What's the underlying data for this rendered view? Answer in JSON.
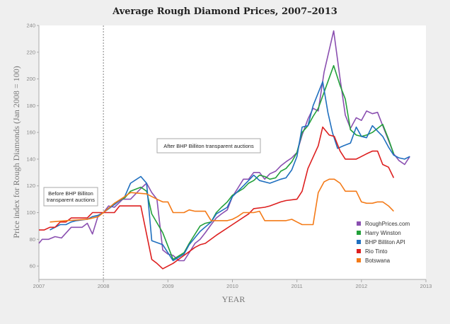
{
  "chart_data": {
    "type": "line",
    "title": "Average Rough Diamond Prices, 2007–2013",
    "xlabel": "YEAR",
    "ylabel": "Price index for Rough Diamonds (Jan 2008 = 100)",
    "xlim": [
      2007,
      2013
    ],
    "ylim": [
      50,
      240
    ],
    "x_ticks": [
      "2007",
      "2008",
      "2009",
      "2010",
      "2011",
      "2012",
      "2013"
    ],
    "y_ticks": [
      "60",
      "80",
      "100",
      "120",
      "140",
      "160",
      "180",
      "200",
      "220",
      "240"
    ],
    "grid": false,
    "legend_position": "bottom-right",
    "annotations": [
      {
        "text": "Before BHP Billiton transparent auctions",
        "lines": [
          "Before BHP Billiton",
          "transparent auctions"
        ]
      },
      {
        "text": "After BHP Billiton transparent auctions"
      }
    ],
    "marker_line_x": 2008,
    "series": [
      {
        "name": "RoughPrices.com",
        "color": "#8a4fb0",
        "points": [
          [
            2007.0,
            77
          ],
          [
            2007.05,
            80
          ],
          [
            2007.15,
            80
          ],
          [
            2007.25,
            82
          ],
          [
            2007.35,
            81
          ],
          [
            2007.5,
            89
          ],
          [
            2007.67,
            89
          ],
          [
            2007.75,
            92
          ],
          [
            2007.83,
            84
          ],
          [
            2007.92,
            98
          ],
          [
            2008.0,
            100
          ],
          [
            2008.08,
            105
          ],
          [
            2008.17,
            104
          ],
          [
            2008.3,
            110
          ],
          [
            2008.42,
            110
          ],
          [
            2008.58,
            118
          ],
          [
            2008.67,
            122
          ],
          [
            2008.75,
            115
          ],
          [
            2008.83,
            110
          ],
          [
            2008.92,
            72
          ],
          [
            2009.0,
            69
          ],
          [
            2009.08,
            68
          ],
          [
            2009.17,
            64
          ],
          [
            2009.25,
            64
          ],
          [
            2009.33,
            70
          ],
          [
            2009.42,
            77
          ],
          [
            2009.5,
            80
          ],
          [
            2009.58,
            85
          ],
          [
            2009.67,
            91
          ],
          [
            2009.75,
            96
          ],
          [
            2009.83,
            99
          ],
          [
            2009.92,
            102
          ],
          [
            2010.0,
            112
          ],
          [
            2010.08,
            118
          ],
          [
            2010.17,
            125
          ],
          [
            2010.25,
            125
          ],
          [
            2010.33,
            130
          ],
          [
            2010.42,
            130
          ],
          [
            2010.5,
            125
          ],
          [
            2010.58,
            129
          ],
          [
            2010.67,
            131
          ],
          [
            2010.75,
            135
          ],
          [
            2010.83,
            138
          ],
          [
            2010.92,
            141
          ],
          [
            2011.0,
            145
          ],
          [
            2011.08,
            158
          ],
          [
            2011.17,
            170
          ],
          [
            2011.25,
            178
          ],
          [
            2011.33,
            176
          ],
          [
            2011.42,
            205
          ],
          [
            2011.57,
            236
          ],
          [
            2011.67,
            200
          ],
          [
            2011.75,
            173
          ],
          [
            2011.83,
            163
          ],
          [
            2011.92,
            171
          ],
          [
            2012.0,
            169
          ],
          [
            2012.08,
            176
          ],
          [
            2012.17,
            174
          ],
          [
            2012.25,
            175
          ],
          [
            2012.33,
            165
          ],
          [
            2012.42,
            154
          ],
          [
            2012.5,
            144
          ],
          [
            2012.58,
            139
          ],
          [
            2012.67,
            136
          ],
          [
            2012.75,
            142
          ]
        ]
      },
      {
        "name": "Harry Winston",
        "color": "#22a03a",
        "points": [
          [
            2008.0,
            100
          ],
          [
            2008.17,
            107
          ],
          [
            2008.33,
            111
          ],
          [
            2008.42,
            116
          ],
          [
            2008.58,
            119
          ],
          [
            2008.67,
            116
          ],
          [
            2008.75,
            99
          ],
          [
            2008.92,
            85
          ],
          [
            2009.08,
            65
          ],
          [
            2009.25,
            70
          ],
          [
            2009.33,
            77
          ],
          [
            2009.5,
            90
          ],
          [
            2009.58,
            92
          ],
          [
            2009.67,
            93
          ],
          [
            2009.75,
            100
          ],
          [
            2009.83,
            104
          ],
          [
            2009.92,
            108
          ],
          [
            2010.0,
            113
          ],
          [
            2010.17,
            118
          ],
          [
            2010.25,
            122
          ],
          [
            2010.33,
            124
          ],
          [
            2010.42,
            128
          ],
          [
            2010.5,
            127
          ],
          [
            2010.58,
            125
          ],
          [
            2010.67,
            126
          ],
          [
            2010.75,
            131
          ],
          [
            2010.83,
            133
          ],
          [
            2010.92,
            138
          ],
          [
            2011.0,
            145
          ],
          [
            2011.08,
            160
          ],
          [
            2011.17,
            165
          ],
          [
            2011.25,
            172
          ],
          [
            2011.33,
            178
          ],
          [
            2011.42,
            190
          ],
          [
            2011.57,
            210
          ],
          [
            2011.67,
            195
          ],
          [
            2011.75,
            185
          ],
          [
            2011.83,
            162
          ],
          [
            2011.92,
            158
          ],
          [
            2012.0,
            157
          ],
          [
            2012.08,
            158
          ],
          [
            2012.17,
            160
          ],
          [
            2012.25,
            163
          ],
          [
            2012.33,
            166
          ],
          [
            2012.42,
            155
          ],
          [
            2012.5,
            144
          ]
        ]
      },
      {
        "name": "BHP Billiton API",
        "color": "#1f6fbf",
        "points": [
          [
            2007.17,
            87
          ],
          [
            2007.25,
            89
          ],
          [
            2007.33,
            91
          ],
          [
            2007.42,
            91
          ],
          [
            2007.5,
            93
          ],
          [
            2007.58,
            94
          ],
          [
            2007.75,
            95
          ],
          [
            2007.83,
            97
          ],
          [
            2007.92,
            98
          ],
          [
            2008.0,
            100
          ],
          [
            2008.17,
            106
          ],
          [
            2008.33,
            112
          ],
          [
            2008.42,
            122
          ],
          [
            2008.58,
            127
          ],
          [
            2008.67,
            122
          ],
          [
            2008.75,
            79
          ],
          [
            2008.92,
            76
          ],
          [
            2009.08,
            64
          ],
          [
            2009.25,
            69
          ],
          [
            2009.33,
            76
          ],
          [
            2009.5,
            86
          ],
          [
            2009.67,
            93
          ],
          [
            2009.75,
            99
          ],
          [
            2009.92,
            104
          ],
          [
            2010.0,
            112
          ],
          [
            2010.17,
            120
          ],
          [
            2010.25,
            124
          ],
          [
            2010.33,
            128
          ],
          [
            2010.42,
            124
          ],
          [
            2010.58,
            122
          ],
          [
            2010.75,
            125
          ],
          [
            2010.83,
            126
          ],
          [
            2010.92,
            132
          ],
          [
            2011.0,
            142
          ],
          [
            2011.08,
            164
          ],
          [
            2011.17,
            165
          ],
          [
            2011.25,
            180
          ],
          [
            2011.4,
            198
          ],
          [
            2011.48,
            175
          ],
          [
            2011.55,
            160
          ],
          [
            2011.63,
            148
          ],
          [
            2011.72,
            150
          ],
          [
            2011.83,
            152
          ],
          [
            2011.92,
            164
          ],
          [
            2012.0,
            157
          ],
          [
            2012.08,
            156
          ],
          [
            2012.17,
            165
          ],
          [
            2012.25,
            161
          ],
          [
            2012.33,
            157
          ],
          [
            2012.42,
            149
          ],
          [
            2012.5,
            143
          ],
          [
            2012.58,
            141
          ],
          [
            2012.67,
            140
          ],
          [
            2012.75,
            142
          ]
        ]
      },
      {
        "name": "Rio Tinto",
        "color": "#dd1f1f",
        "points": [
          [
            2007.0,
            87
          ],
          [
            2007.08,
            87
          ],
          [
            2007.17,
            89
          ],
          [
            2007.25,
            89
          ],
          [
            2007.33,
            93
          ],
          [
            2007.42,
            93
          ],
          [
            2007.5,
            96
          ],
          [
            2007.75,
            96
          ],
          [
            2007.83,
            100
          ],
          [
            2007.92,
            100
          ],
          [
            2008.0,
            100
          ],
          [
            2008.17,
            100
          ],
          [
            2008.25,
            105
          ],
          [
            2008.58,
            105
          ],
          [
            2008.75,
            65
          ],
          [
            2008.83,
            62
          ],
          [
            2008.92,
            58
          ],
          [
            2009.08,
            62
          ],
          [
            2009.25,
            68
          ],
          [
            2009.42,
            74
          ],
          [
            2009.5,
            76
          ],
          [
            2009.58,
            77
          ],
          [
            2009.75,
            83
          ],
          [
            2010.0,
            91
          ],
          [
            2010.25,
            99
          ],
          [
            2010.33,
            103
          ],
          [
            2010.5,
            104
          ],
          [
            2010.58,
            105
          ],
          [
            2010.75,
            108
          ],
          [
            2010.83,
            109
          ],
          [
            2011.0,
            110
          ],
          [
            2011.08,
            116
          ],
          [
            2011.17,
            133
          ],
          [
            2011.33,
            150
          ],
          [
            2011.4,
            164
          ],
          [
            2011.5,
            158
          ],
          [
            2011.58,
            157
          ],
          [
            2011.67,
            146
          ],
          [
            2011.75,
            140
          ],
          [
            2011.92,
            140
          ],
          [
            2012.0,
            142
          ],
          [
            2012.08,
            144
          ],
          [
            2012.17,
            146
          ],
          [
            2012.25,
            146
          ],
          [
            2012.33,
            136
          ],
          [
            2012.42,
            134
          ],
          [
            2012.5,
            126
          ]
        ]
      },
      {
        "name": "Botswana",
        "color": "#f47a17",
        "points": [
          [
            2007.17,
            93
          ],
          [
            2007.42,
            94
          ],
          [
            2007.75,
            95
          ],
          [
            2007.92,
            97
          ],
          [
            2008.0,
            100
          ],
          [
            2008.17,
            107
          ],
          [
            2008.33,
            112
          ],
          [
            2008.42,
            115
          ],
          [
            2008.67,
            114
          ],
          [
            2008.83,
            110
          ],
          [
            2008.92,
            108
          ],
          [
            2009.0,
            108
          ],
          [
            2009.08,
            100
          ],
          [
            2009.25,
            100
          ],
          [
            2009.33,
            102
          ],
          [
            2009.42,
            101
          ],
          [
            2009.58,
            101
          ],
          [
            2009.67,
            94
          ],
          [
            2009.75,
            94
          ],
          [
            2009.92,
            94
          ],
          [
            2010.0,
            95
          ],
          [
            2010.08,
            97
          ],
          [
            2010.17,
            100
          ],
          [
            2010.33,
            100
          ],
          [
            2010.42,
            101
          ],
          [
            2010.5,
            94
          ],
          [
            2010.83,
            94
          ],
          [
            2010.92,
            95
          ],
          [
            2011.0,
            93
          ],
          [
            2011.08,
            91
          ],
          [
            2011.17,
            91
          ],
          [
            2011.25,
            91
          ],
          [
            2011.33,
            115
          ],
          [
            2011.42,
            123
          ],
          [
            2011.5,
            125
          ],
          [
            2011.58,
            125
          ],
          [
            2011.67,
            122
          ],
          [
            2011.75,
            116
          ],
          [
            2011.92,
            116
          ],
          [
            2012.0,
            108
          ],
          [
            2012.08,
            107
          ],
          [
            2012.17,
            107
          ],
          [
            2012.25,
            108
          ],
          [
            2012.33,
            108
          ],
          [
            2012.42,
            105
          ],
          [
            2012.5,
            101
          ]
        ]
      }
    ]
  }
}
